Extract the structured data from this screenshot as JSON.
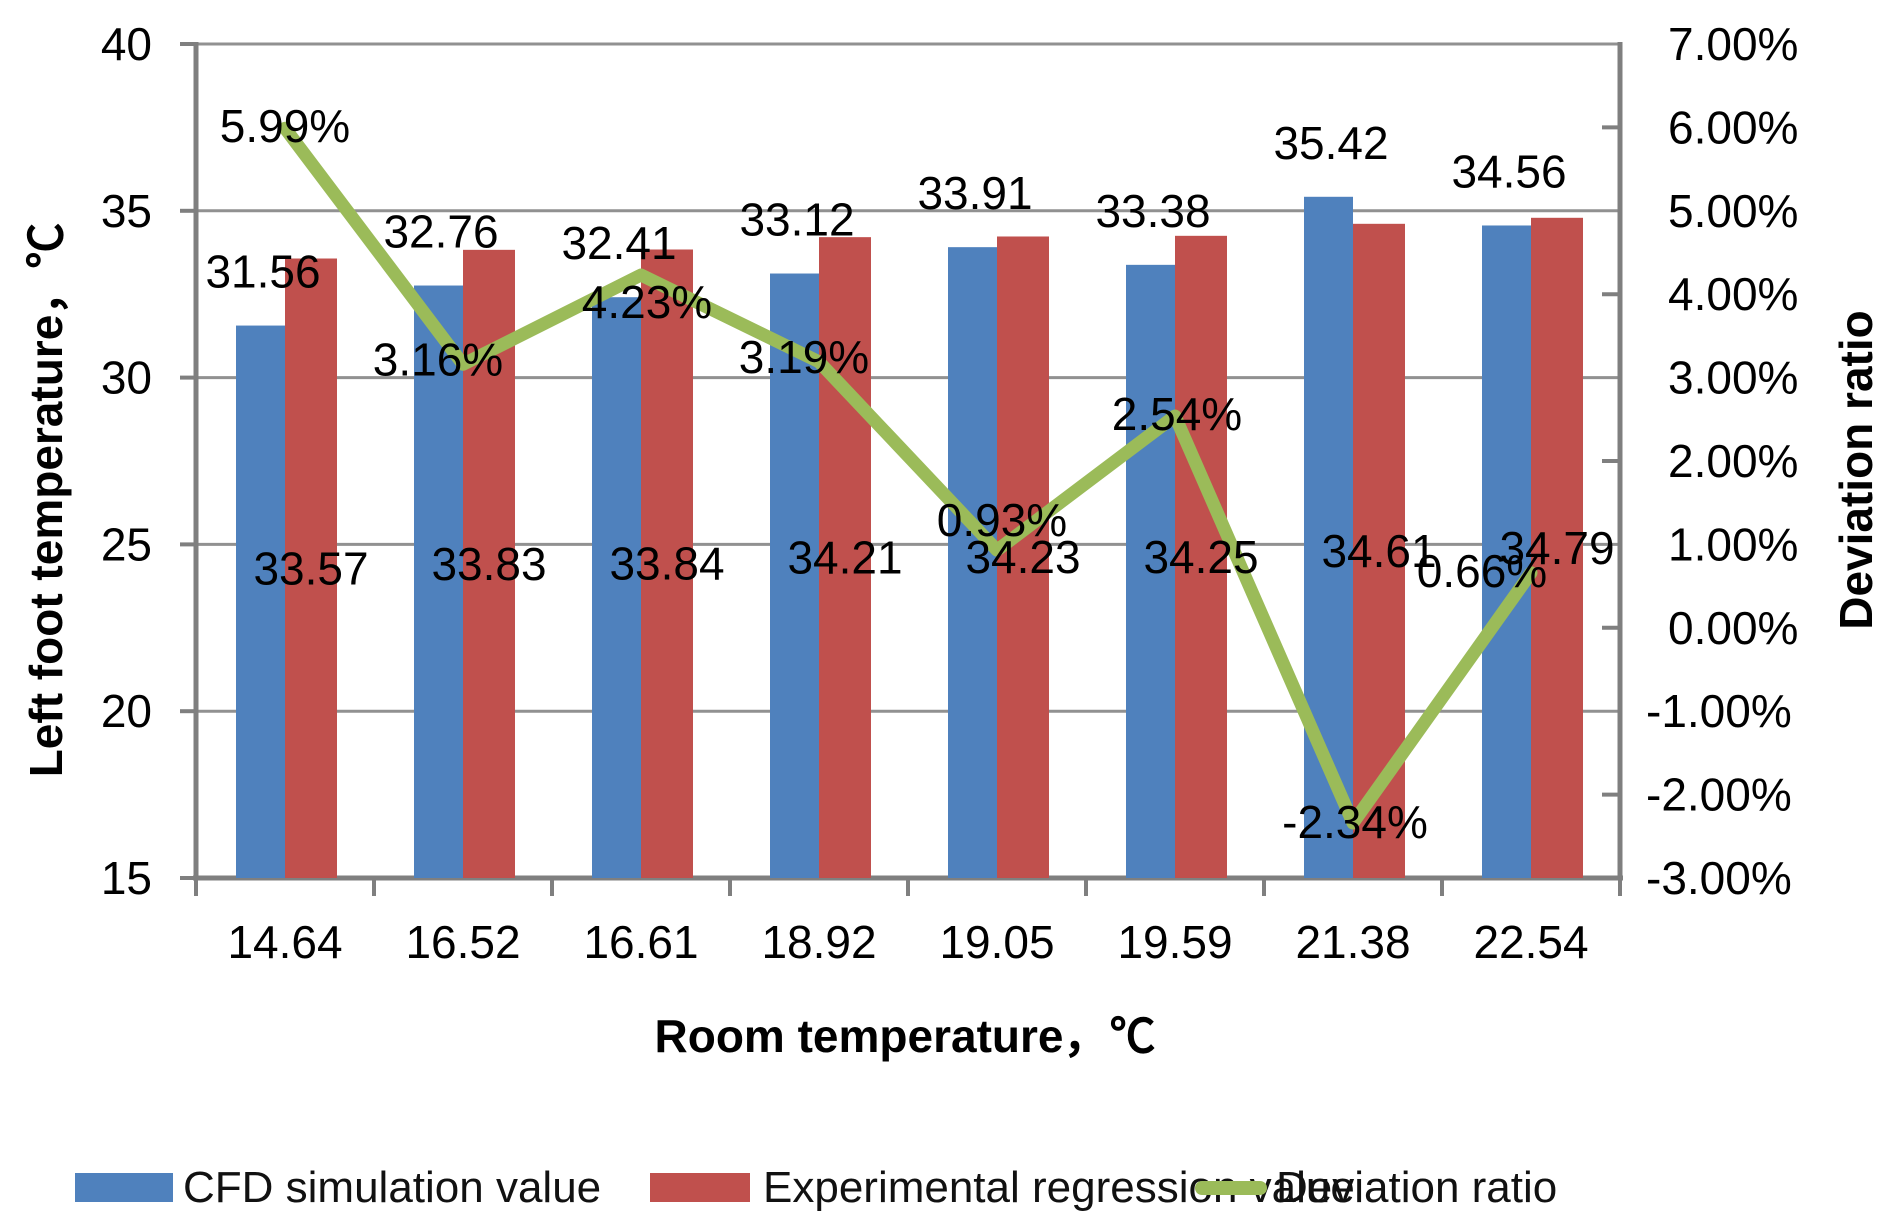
{
  "chart_data": {
    "type": "bar",
    "subtype": "bar+line dual axis",
    "categories": [
      "14.64",
      "16.52",
      "16.61",
      "18.92",
      "19.05",
      "19.59",
      "21.38",
      "22.54"
    ],
    "series": [
      {
        "name": "CFD simulation value",
        "type": "bar",
        "axis": "left",
        "color": "#4F81BD",
        "values": [
          31.56,
          32.76,
          32.41,
          33.12,
          33.91,
          33.38,
          35.42,
          34.56
        ],
        "labels": [
          "31.56",
          "32.76",
          "32.41",
          "33.12",
          "33.91",
          "33.38",
          "35.42",
          "34.56"
        ]
      },
      {
        "name": "Experimental regression value",
        "type": "bar",
        "axis": "left",
        "color": "#C0504D",
        "values": [
          33.57,
          33.83,
          33.84,
          34.21,
          34.23,
          34.25,
          34.61,
          34.79
        ],
        "labels": [
          "33.57",
          "33.83",
          "33.84",
          "34.21",
          "34.23",
          "34.25",
          "34.61",
          "34.79"
        ]
      },
      {
        "name": "Deviation ratio",
        "type": "line",
        "axis": "right",
        "color": "#9BBB59",
        "values": [
          5.99,
          3.16,
          4.23,
          3.19,
          0.93,
          2.54,
          -2.34,
          0.66
        ],
        "labels": [
          "5.99%",
          "3.16%",
          "4.23%",
          "3.19%",
          "0.93%",
          "2.54%",
          "-2.34%",
          "0.66%"
        ]
      }
    ],
    "x_axis": {
      "title": "Room temperature，℃"
    },
    "left_axis": {
      "title": "Left foot temperature，℃",
      "min": 15,
      "max": 40,
      "ticks": [
        40,
        35,
        30,
        25,
        20,
        15
      ],
      "tick_labels": [
        "40",
        "35",
        "30",
        "25",
        "20",
        "15"
      ]
    },
    "right_axis": {
      "title": "Deviation ratio",
      "min": -3,
      "max": 7,
      "ticks": [
        7,
        6,
        5,
        4,
        3,
        2,
        1,
        0,
        -1,
        -2,
        -3
      ],
      "tick_labels": [
        "7.00%",
        "6.00%",
        "5.00%",
        "4.00%",
        "3.00%",
        "2.00%",
        "1.00%",
        "0.00%",
        "-1.00%",
        "-2.00%",
        "-3.00%"
      ]
    },
    "grid": "horizontal gridlines at every 5 °C / 2%",
    "legend_position": "bottom",
    "colors": {
      "grid": "#919191",
      "axis": "#7F7F7F",
      "text": "#000000"
    }
  },
  "legend": {
    "items": [
      {
        "label": "CFD simulation value",
        "swatch": "bar",
        "color": "#4F81BD"
      },
      {
        "label": "Experimental regression value",
        "swatch": "bar",
        "color": "#C0504D"
      },
      {
        "label": "Deviation ratio",
        "swatch": "line",
        "color": "#9BBB59"
      }
    ]
  }
}
